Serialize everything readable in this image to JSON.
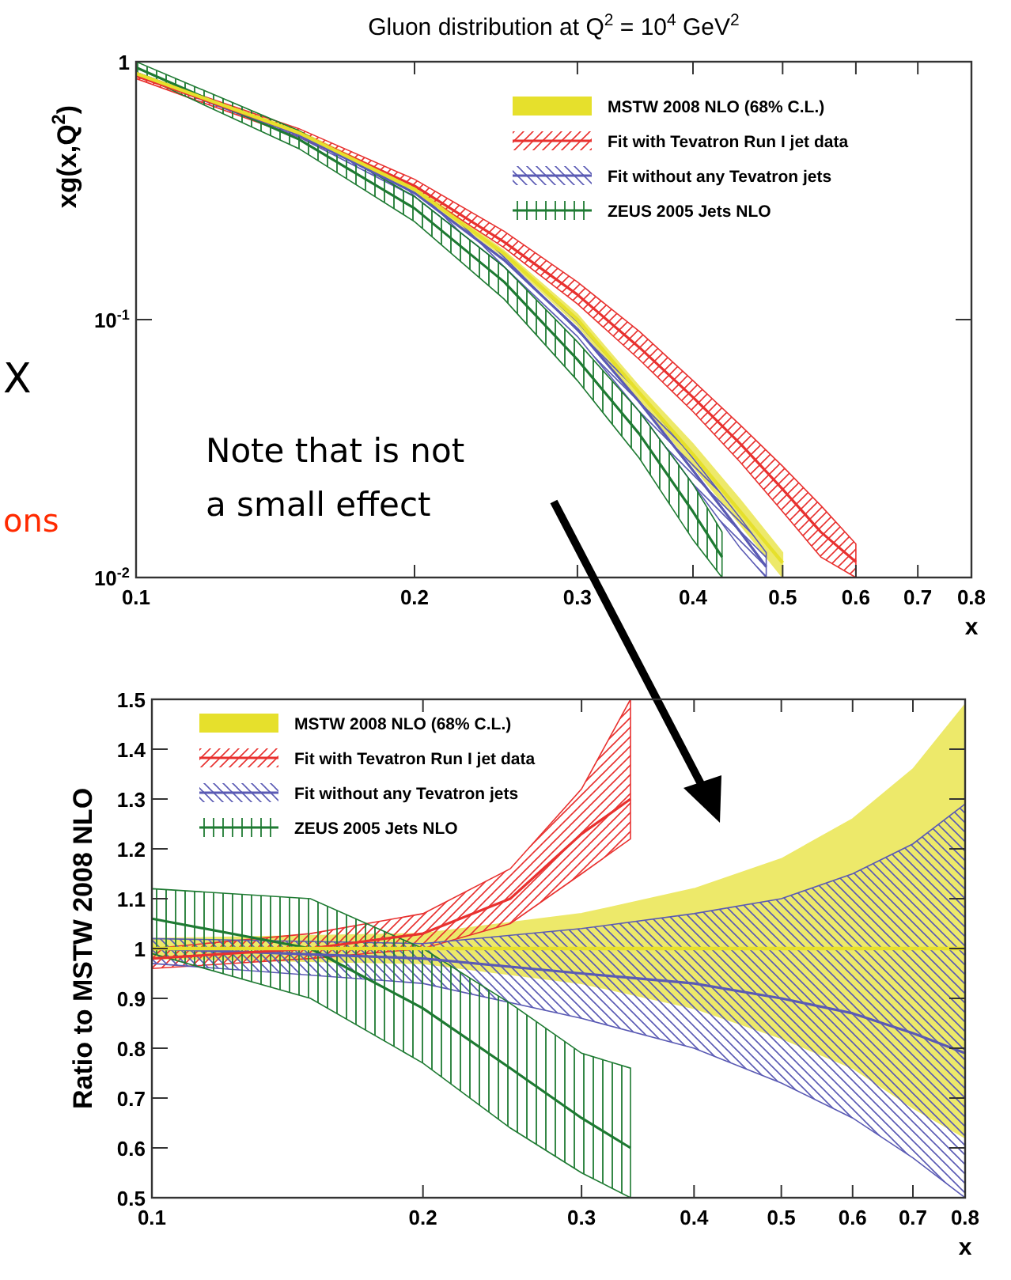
{
  "chart_data": [
    {
      "type": "line",
      "title": "Gluon distribution at Q$^{2}$ = 10$^{4}$ GeV$^{2}$",
      "xlabel": "x",
      "ylabel": "xg(x,Q$^{2}$)",
      "log": "xy",
      "xlim": [
        0.1,
        0.8
      ],
      "ylim": [
        0.01,
        1
      ],
      "xticks": [
        0.1,
        0.2,
        0.3,
        0.4,
        0.5,
        0.6,
        0.7,
        0.8
      ],
      "yticks": [
        {
          "value": 0.01,
          "label": "10$^{-2}$"
        },
        {
          "value": 0.1,
          "label": "10$^{-1}$"
        },
        1
      ],
      "legend": "top right",
      "grid": false,
      "marker": "none",
      "line_style": "solid",
      "annotations": [
        "X",
        "ons",
        "Note that is not a small effect"
      ],
      "series": [
        {
          "name": "MSTW 2008 NLO (68% C.L.)",
          "color": "#e6e02c",
          "x": [
            0.1,
            0.15,
            0.2,
            0.25,
            0.3,
            0.35,
            0.4,
            0.45,
            0.5
          ],
          "values": [
            0.9,
            0.53,
            0.32,
            0.18,
            0.1,
            0.052,
            0.03,
            0.018,
            0.0114
          ],
          "lower": [
            0.89,
            0.52,
            0.31,
            0.175,
            0.095,
            0.049,
            0.027,
            0.016,
            0.01
          ],
          "upper": [
            0.91,
            0.54,
            0.33,
            0.185,
            0.105,
            0.055,
            0.033,
            0.02,
            0.0125
          ]
        },
        {
          "name": "Fit with Tevatron Run I jet data",
          "color": "#e8312f",
          "x": [
            0.1,
            0.15,
            0.2,
            0.25,
            0.3,
            0.35,
            0.4,
            0.45,
            0.5,
            0.55,
            0.6
          ],
          "values": [
            0.88,
            0.53,
            0.33,
            0.2,
            0.125,
            0.078,
            0.05,
            0.033,
            0.022,
            0.015,
            0.0115
          ],
          "lower": [
            0.86,
            0.51,
            0.32,
            0.19,
            0.115,
            0.07,
            0.044,
            0.028,
            0.018,
            0.012,
            0.01
          ],
          "upper": [
            0.9,
            0.55,
            0.35,
            0.22,
            0.14,
            0.09,
            0.058,
            0.039,
            0.027,
            0.019,
            0.0135
          ]
        },
        {
          "name": "Fit without any Tevatron jets",
          "color": "#5a5ab4",
          "x": [
            0.1,
            0.15,
            0.2,
            0.25,
            0.3,
            0.35,
            0.4,
            0.45,
            0.48
          ],
          "values": [
            0.9,
            0.52,
            0.31,
            0.17,
            0.092,
            0.048,
            0.026,
            0.015,
            0.011
          ],
          "lower": [
            0.89,
            0.51,
            0.3,
            0.16,
            0.086,
            0.044,
            0.023,
            0.013,
            0.01
          ],
          "upper": [
            0.91,
            0.53,
            0.32,
            0.18,
            0.098,
            0.052,
            0.029,
            0.017,
            0.0125
          ]
        },
        {
          "name": "ZEUS 2005 Jets NLO",
          "color": "#1e7a32",
          "x": [
            0.1,
            0.15,
            0.2,
            0.25,
            0.3,
            0.35,
            0.4,
            0.43
          ],
          "values": [
            0.95,
            0.5,
            0.27,
            0.14,
            0.07,
            0.036,
            0.018,
            0.012
          ],
          "lower": [
            0.9,
            0.46,
            0.24,
            0.12,
            0.058,
            0.029,
            0.014,
            0.01
          ],
          "upper": [
            1.0,
            0.54,
            0.3,
            0.16,
            0.082,
            0.044,
            0.023,
            0.015
          ]
        }
      ]
    },
    {
      "type": "line",
      "xlabel": "x",
      "ylabel": "Ratio to MSTW 2008 NLO",
      "log": "x",
      "xlim": [
        0.1,
        0.8
      ],
      "ylim": [
        0.5,
        1.5
      ],
      "xticks": [
        0.1,
        0.2,
        0.3,
        0.4,
        0.5,
        0.6,
        0.7,
        0.8
      ],
      "yticks": [
        0.5,
        0.6,
        0.7,
        0.8,
        0.9,
        1,
        1.1,
        1.2,
        1.3,
        1.4,
        1.5
      ],
      "legend": "top left",
      "grid": false,
      "marker": "none",
      "line_style": "solid",
      "series": [
        {
          "name": "MSTW 2008 NLO (68% C.L.)",
          "color": "#e6e02c",
          "x": [
            0.1,
            0.2,
            0.3,
            0.4,
            0.5,
            0.6,
            0.7,
            0.8
          ],
          "values": [
            1,
            1,
            1,
            1,
            1,
            1,
            1,
            1
          ],
          "lower": [
            0.98,
            0.97,
            0.93,
            0.88,
            0.82,
            0.76,
            0.68,
            0.62
          ],
          "upper": [
            1.02,
            1.03,
            1.07,
            1.12,
            1.18,
            1.26,
            1.36,
            1.49
          ]
        },
        {
          "name": "Fit with Tevatron Run I jet data",
          "color": "#e8312f",
          "x": [
            0.1,
            0.15,
            0.2,
            0.25,
            0.3,
            0.34
          ],
          "values": [
            0.98,
            1.0,
            1.03,
            1.1,
            1.23,
            1.3
          ],
          "lower": [
            0.96,
            0.98,
            1.0,
            1.05,
            1.15,
            1.22
          ],
          "upper": [
            1.0,
            1.03,
            1.07,
            1.16,
            1.32,
            1.5
          ]
        },
        {
          "name": "Fit without any Tevatron jets",
          "color": "#5a5ab4",
          "x": [
            0.1,
            0.2,
            0.3,
            0.4,
            0.5,
            0.6,
            0.7,
            0.8
          ],
          "values": [
            1.0,
            0.98,
            0.95,
            0.93,
            0.9,
            0.87,
            0.83,
            0.79
          ],
          "lower": [
            0.97,
            0.93,
            0.86,
            0.8,
            0.73,
            0.66,
            0.58,
            0.5
          ],
          "upper": [
            1.02,
            1.01,
            1.04,
            1.07,
            1.1,
            1.15,
            1.21,
            1.29
          ]
        },
        {
          "name": "ZEUS 2005 Jets NLO",
          "color": "#1e7a32",
          "x": [
            0.1,
            0.15,
            0.2,
            0.25,
            0.3,
            0.34
          ],
          "values": [
            1.06,
            1.0,
            0.88,
            0.76,
            0.66,
            0.6
          ],
          "lower": [
            0.99,
            0.9,
            0.77,
            0.64,
            0.55,
            0.5
          ],
          "upper": [
            1.12,
            1.1,
            1.0,
            0.89,
            0.79,
            0.76
          ]
        }
      ]
    }
  ]
}
